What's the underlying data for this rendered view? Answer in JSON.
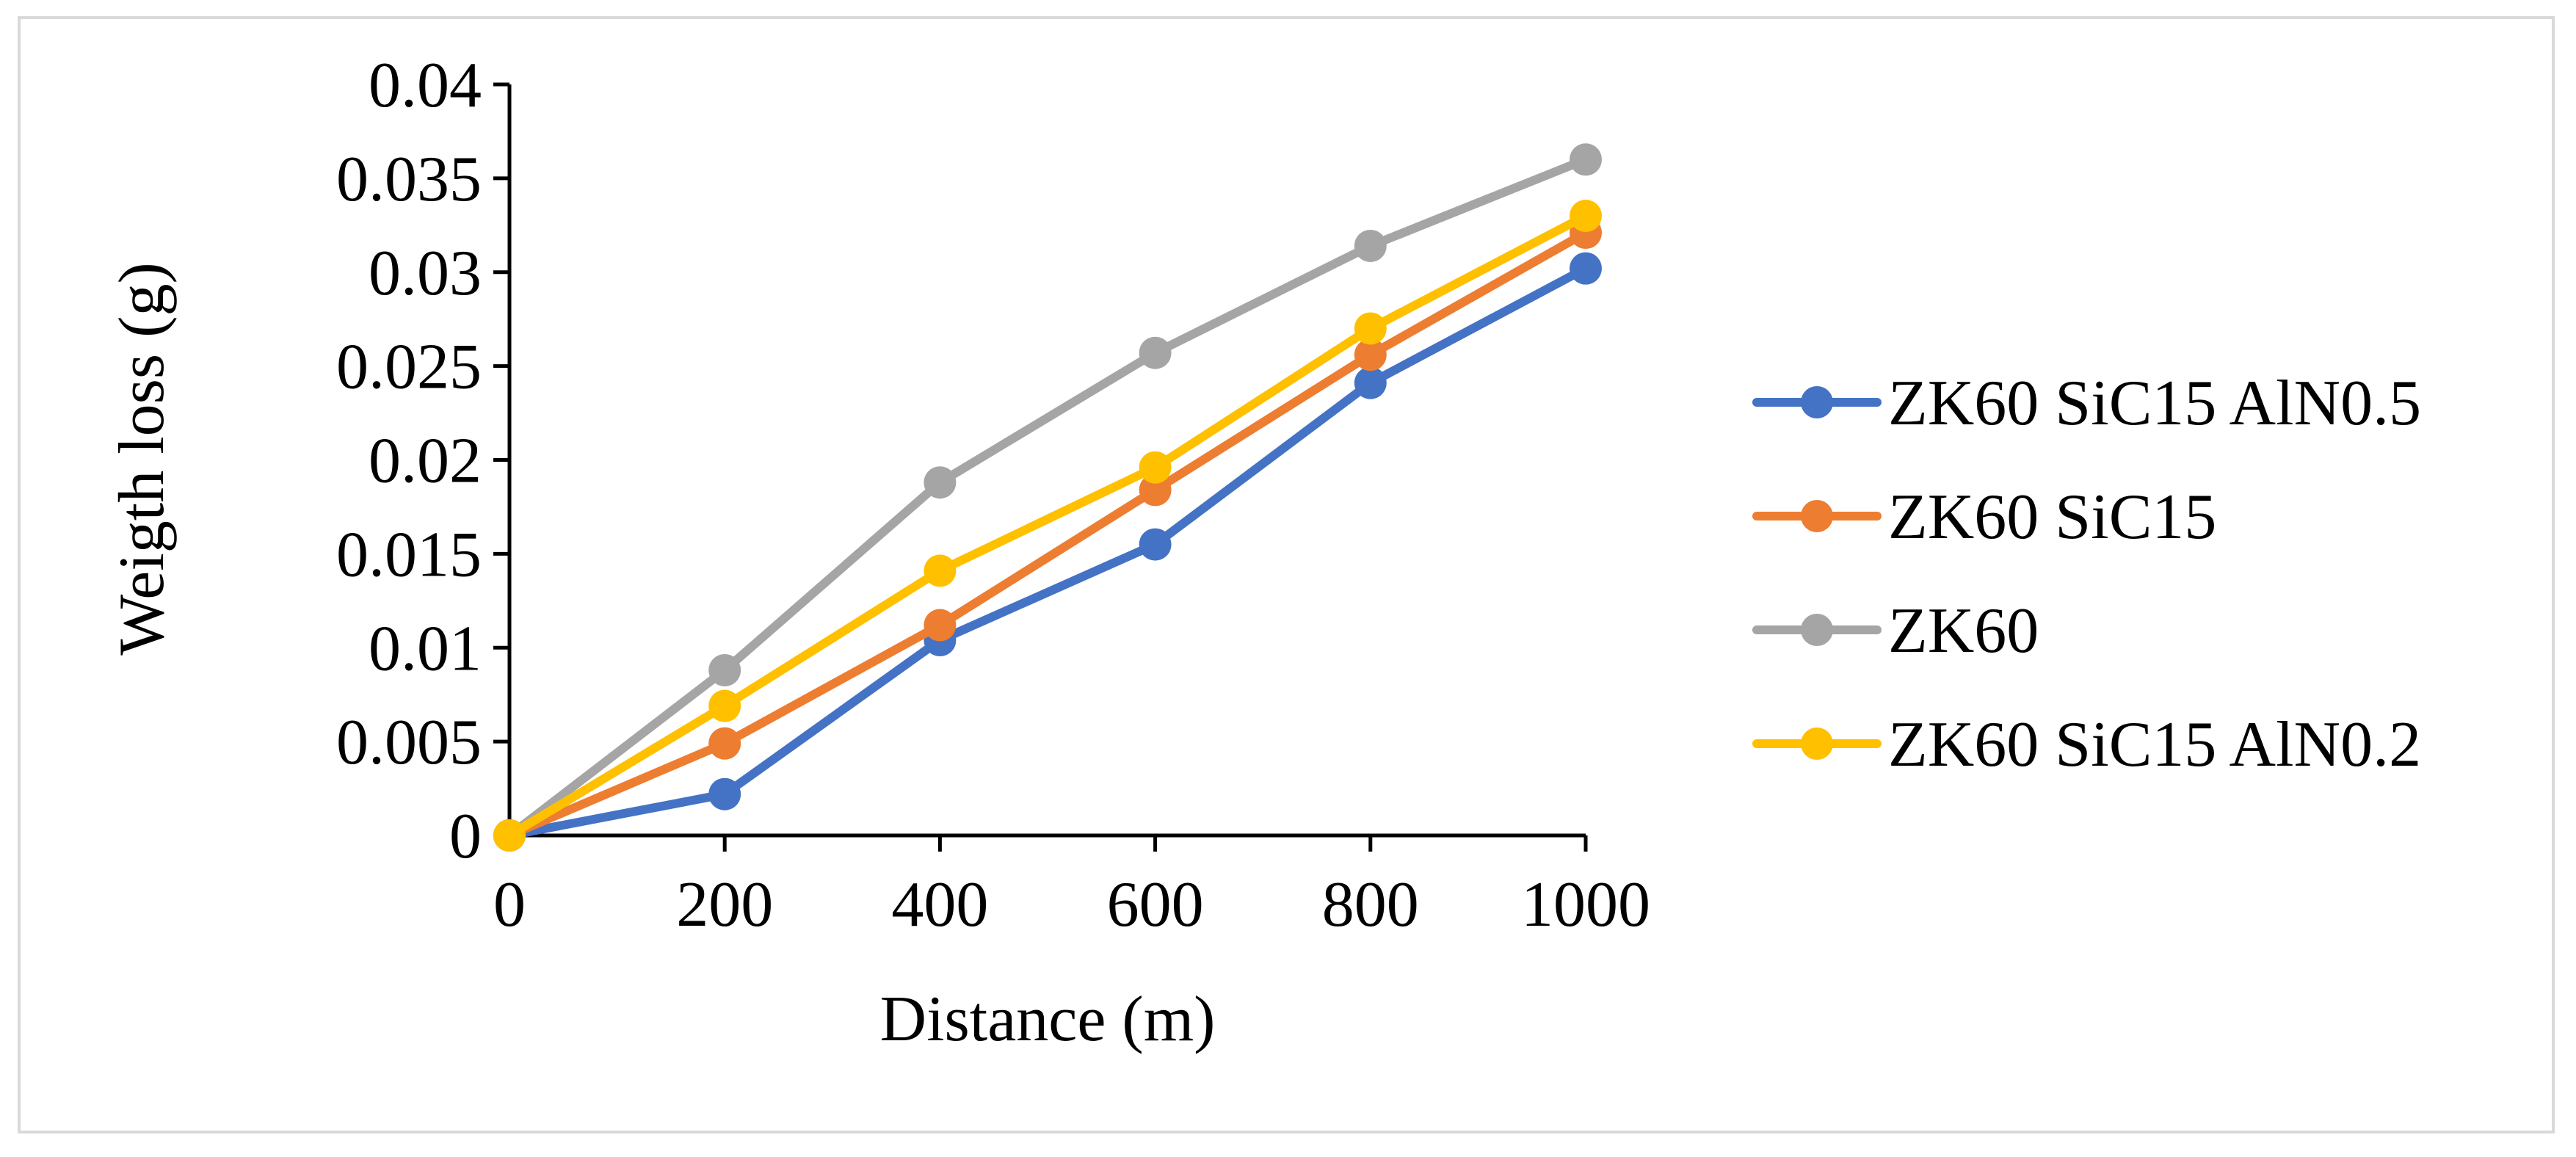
{
  "chart_data": {
    "type": "line",
    "title": "",
    "xlabel": "Distance (m)",
    "ylabel": "Weigth loss (g)",
    "x": [
      0,
      200,
      400,
      600,
      800,
      1000
    ],
    "x_tick_labels": [
      "0",
      "200",
      "400",
      "600",
      "800",
      "1000"
    ],
    "xlim": [
      0,
      1000
    ],
    "ylim": [
      0,
      0.04
    ],
    "y_ticks": [
      0,
      0.005,
      0.01,
      0.015,
      0.02,
      0.025,
      0.03,
      0.035,
      0.04
    ],
    "y_tick_labels": [
      "0",
      "0.005",
      "0.01",
      "0.015",
      "0.02",
      "0.025",
      "0.03",
      "0.035",
      "0.04"
    ],
    "grid": false,
    "legend_position": "right",
    "series": [
      {
        "name": "ZK60 SiC15 AlN0.5",
        "color": "#4472C4",
        "values": [
          0,
          0.0022,
          0.0104,
          0.0155,
          0.0241,
          0.0302
        ]
      },
      {
        "name": "ZK60 SiC15",
        "color": "#ED7D31",
        "values": [
          0,
          0.0049,
          0.0112,
          0.0184,
          0.0256,
          0.0321
        ]
      },
      {
        "name": "ZK60",
        "color": "#A5A5A5",
        "values": [
          0,
          0.0088,
          0.0188,
          0.0257,
          0.0314,
          0.036
        ]
      },
      {
        "name": "ZK60 SiC15 AlN0.2",
        "color": "#FFC000",
        "values": [
          0,
          0.0069,
          0.0141,
          0.0196,
          0.027,
          0.033
        ]
      }
    ]
  }
}
